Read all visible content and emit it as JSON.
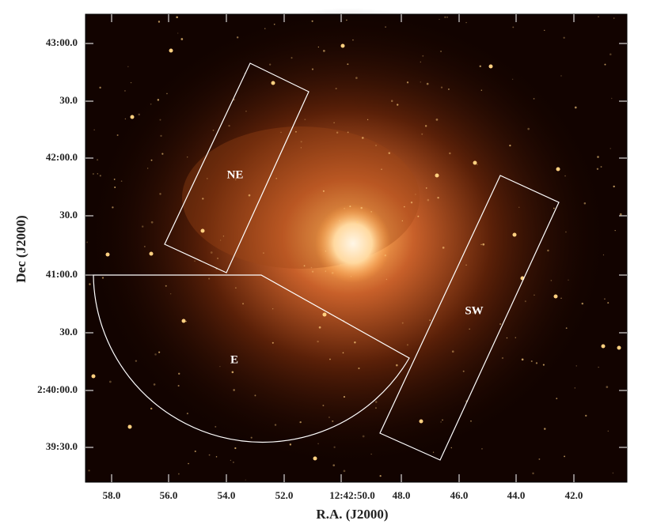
{
  "image": {
    "x_axis": {
      "label": "R.A. (J2000)",
      "ticks": [
        "58.0",
        "56.0",
        "54.0",
        "52.0",
        "12:42:50.0",
        "48.0",
        "46.0",
        "44.0",
        "42.0"
      ]
    },
    "y_axis": {
      "label": "Dec (J2000)",
      "ticks": [
        "43:00.0",
        "30.0",
        "42:00.0",
        "30.0",
        "41:00.0",
        "30.0",
        "2:40:00.0",
        "39:30.0"
      ]
    },
    "regions": [
      "NE",
      "SW",
      "E"
    ]
  }
}
